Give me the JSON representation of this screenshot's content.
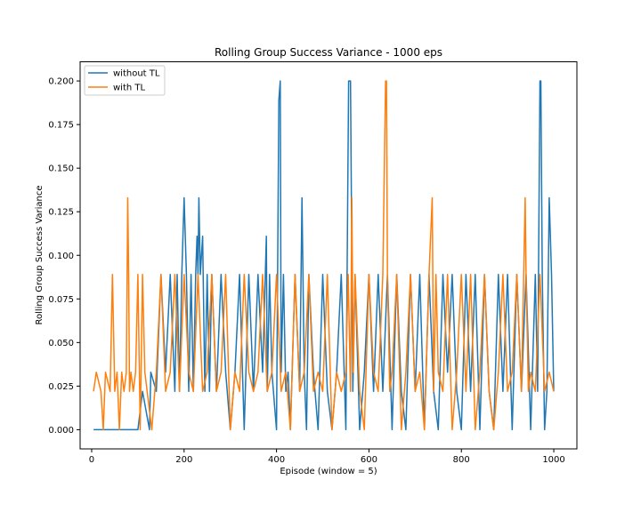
{
  "chart_data": {
    "type": "line",
    "title": "Rolling Group Success Variance - 1000 eps",
    "xlabel": "Episode (window = 5)",
    "ylabel": "Rolling Group Success Variance",
    "xlim": [
      -25,
      1050
    ],
    "ylim": [
      -0.011,
      0.211
    ],
    "xticks": [
      0,
      200,
      400,
      600,
      800,
      1000
    ],
    "xtick_labels": [
      "0",
      "200",
      "400",
      "600",
      "800",
      "1000"
    ],
    "yticks": [
      0.0,
      0.025,
      0.05,
      0.075,
      0.1,
      0.125,
      0.15,
      0.175,
      0.2
    ],
    "ytick_labels": [
      "0.000",
      "0.025",
      "0.050",
      "0.075",
      "0.100",
      "0.125",
      "0.150",
      "0.175",
      "0.200"
    ],
    "grid": false,
    "legend_position": "top-left",
    "series": [
      {
        "name": "without TL",
        "color": "#1f77b4",
        "x": [
          4,
          100,
          110,
          125,
          128,
          140,
          150,
          160,
          170,
          180,
          185,
          190,
          195,
          200,
          205,
          210,
          215,
          220,
          225,
          228,
          230,
          232,
          235,
          240,
          245,
          250,
          255,
          260,
          270,
          280,
          290,
          300,
          310,
          320,
          330,
          340,
          350,
          360,
          370,
          378,
          380,
          385,
          390,
          400,
          405,
          408,
          410,
          415,
          420,
          425,
          430,
          440,
          450,
          455,
          460,
          465,
          470,
          480,
          490,
          500,
          510,
          520,
          530,
          540,
          550,
          556,
          560,
          565,
          570,
          580,
          590,
          600,
          610,
          620,
          630,
          640,
          650,
          660,
          670,
          680,
          690,
          700,
          710,
          720,
          730,
          740,
          750,
          760,
          770,
          780,
          790,
          800,
          810,
          820,
          830,
          840,
          850,
          860,
          870,
          880,
          890,
          900,
          910,
          920,
          930,
          940,
          950,
          960,
          965,
          970,
          972,
          975,
          980,
          985,
          990,
          995,
          1000
        ],
        "y": [
          0.0,
          0.0,
          0.022,
          0.0,
          0.033,
          0.022,
          0.089,
          0.033,
          0.089,
          0.022,
          0.089,
          0.022,
          0.089,
          0.133,
          0.089,
          0.022,
          0.089,
          0.022,
          0.089,
          0.111,
          0.089,
          0.133,
          0.089,
          0.111,
          0.022,
          0.089,
          0.022,
          0.089,
          0.022,
          0.089,
          0.033,
          0.0,
          0.033,
          0.089,
          0.0,
          0.089,
          0.022,
          0.089,
          0.033,
          0.111,
          0.022,
          0.089,
          0.033,
          0.0,
          0.189,
          0.2,
          0.033,
          0.089,
          0.022,
          0.033,
          0.0,
          0.089,
          0.022,
          0.133,
          0.033,
          0.0,
          0.089,
          0.033,
          0.0,
          0.089,
          0.022,
          0.0,
          0.033,
          0.089,
          0.0,
          0.2,
          0.2,
          0.022,
          0.089,
          0.0,
          0.033,
          0.089,
          0.022,
          0.089,
          0.022,
          0.089,
          0.0,
          0.089,
          0.022,
          0.0,
          0.089,
          0.022,
          0.089,
          0.0,
          0.089,
          0.022,
          0.0,
          0.089,
          0.033,
          0.089,
          0.022,
          0.0,
          0.089,
          0.022,
          0.089,
          0.0,
          0.089,
          0.022,
          0.0,
          0.089,
          0.022,
          0.089,
          0.0,
          0.089,
          0.022,
          0.089,
          0.0,
          0.089,
          0.022,
          0.2,
          0.2,
          0.089,
          0.0,
          0.022,
          0.133,
          0.089,
          0.022
        ]
      },
      {
        "name": "with TL",
        "color": "#ff7f0e",
        "x": [
          4,
          10,
          20,
          25,
          30,
          40,
          45,
          50,
          55,
          60,
          65,
          70,
          75,
          78,
          80,
          82,
          85,
          90,
          95,
          100,
          105,
          110,
          115,
          120,
          130,
          140,
          150,
          160,
          170,
          180,
          190,
          200,
          210,
          220,
          230,
          240,
          250,
          260,
          270,
          280,
          290,
          300,
          310,
          320,
          330,
          340,
          350,
          360,
          370,
          380,
          390,
          400,
          410,
          420,
          430,
          440,
          450,
          460,
          470,
          480,
          490,
          500,
          510,
          520,
          530,
          540,
          550,
          555,
          560,
          563,
          566,
          570,
          580,
          590,
          600,
          610,
          620,
          630,
          636,
          638,
          640,
          645,
          650,
          660,
          670,
          680,
          690,
          700,
          710,
          720,
          730,
          737,
          740,
          745,
          750,
          760,
          770,
          780,
          790,
          800,
          810,
          820,
          830,
          840,
          850,
          860,
          870,
          880,
          890,
          900,
          910,
          920,
          930,
          938,
          940,
          945,
          950,
          960,
          970,
          980,
          990,
          1000
        ],
        "y": [
          0.022,
          0.033,
          0.022,
          0.0,
          0.033,
          0.022,
          0.089,
          0.022,
          0.033,
          0.0,
          0.033,
          0.022,
          0.033,
          0.133,
          0.089,
          0.022,
          0.033,
          0.022,
          0.033,
          0.089,
          0.0,
          0.089,
          0.033,
          0.022,
          0.0,
          0.033,
          0.089,
          0.022,
          0.033,
          0.089,
          0.022,
          0.089,
          0.033,
          0.022,
          0.089,
          0.022,
          0.033,
          0.089,
          0.022,
          0.033,
          0.089,
          0.0,
          0.033,
          0.022,
          0.089,
          0.033,
          0.022,
          0.033,
          0.089,
          0.022,
          0.033,
          0.089,
          0.022,
          0.033,
          0.0,
          0.089,
          0.022,
          0.033,
          0.089,
          0.022,
          0.033,
          0.022,
          0.089,
          0.0,
          0.033,
          0.022,
          0.033,
          0.089,
          0.022,
          0.133,
          0.033,
          0.089,
          0.022,
          0.0,
          0.089,
          0.033,
          0.022,
          0.089,
          0.2,
          0.2,
          0.089,
          0.022,
          0.033,
          0.089,
          0.0,
          0.033,
          0.089,
          0.022,
          0.033,
          0.0,
          0.089,
          0.133,
          0.022,
          0.089,
          0.033,
          0.022,
          0.089,
          0.0,
          0.033,
          0.089,
          0.022,
          0.089,
          0.0,
          0.033,
          0.089,
          0.022,
          0.0,
          0.033,
          0.089,
          0.022,
          0.033,
          0.089,
          0.022,
          0.133,
          0.089,
          0.022,
          0.033,
          0.022,
          0.089,
          0.022,
          0.033,
          0.022
        ]
      }
    ]
  }
}
